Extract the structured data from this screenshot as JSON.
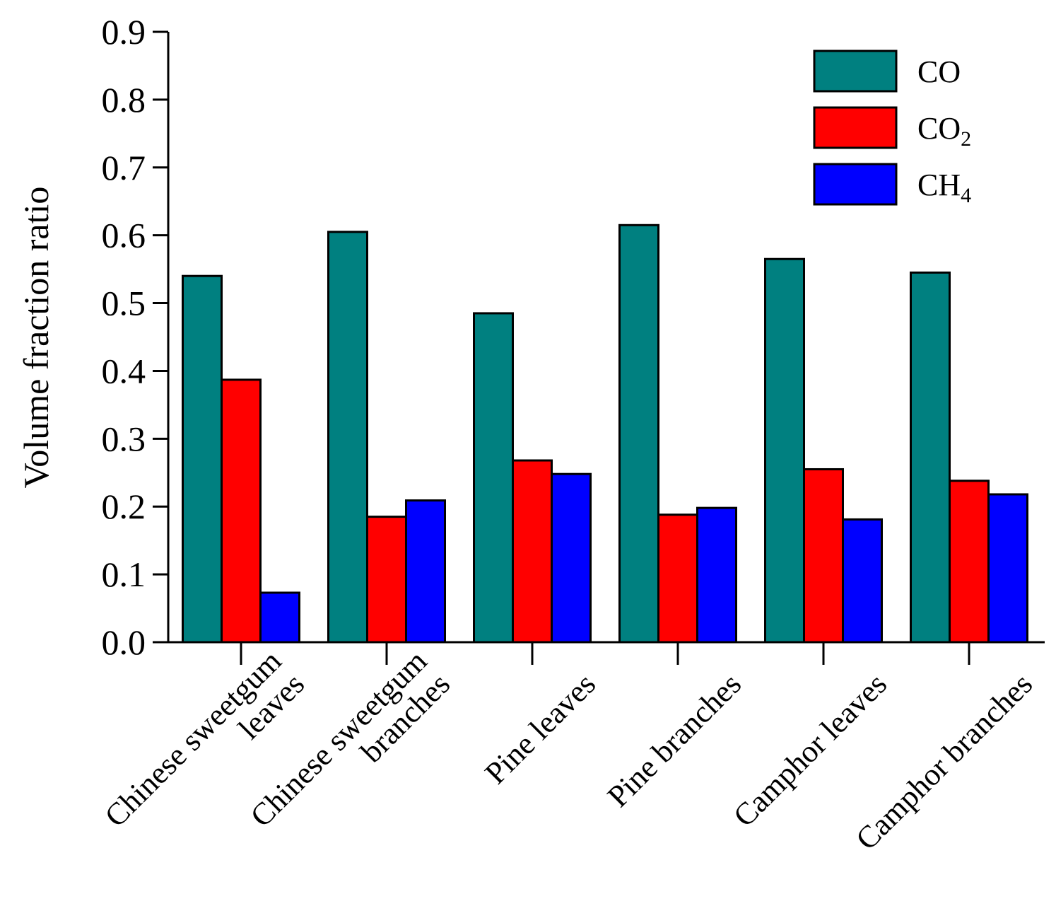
{
  "chart_data": {
    "type": "bar",
    "xlabel": "",
    "ylabel": "Volume fraction ratio",
    "ylim": [
      0,
      0.9
    ],
    "yticks": [
      "0.0",
      "0.1",
      "0.2",
      "0.3",
      "0.4",
      "0.5",
      "0.6",
      "0.7",
      "0.8",
      "0.9"
    ],
    "grid": false,
    "legend_position": "top-right",
    "categories": [
      [
        "Chinese sweetgum",
        "leaves"
      ],
      [
        "Chinese sweetgum",
        "branches"
      ],
      [
        "Pine leaves"
      ],
      [
        "Pine branches"
      ],
      [
        "Camphor leaves"
      ],
      [
        "Camphor branches"
      ]
    ],
    "series": [
      {
        "name": "CO",
        "name_main": "CO",
        "name_sub": "",
        "color": "#008080",
        "values": [
          0.54,
          0.605,
          0.485,
          0.615,
          0.565,
          0.545
        ]
      },
      {
        "name": "CO2",
        "name_main": "CO",
        "name_sub": "2",
        "color": "#ff0000",
        "values": [
          0.387,
          0.185,
          0.268,
          0.188,
          0.255,
          0.238
        ]
      },
      {
        "name": "CH4",
        "name_main": "CH",
        "name_sub": "4",
        "color": "#0000ff",
        "values": [
          0.073,
          0.209,
          0.248,
          0.198,
          0.181,
          0.218
        ]
      }
    ]
  }
}
